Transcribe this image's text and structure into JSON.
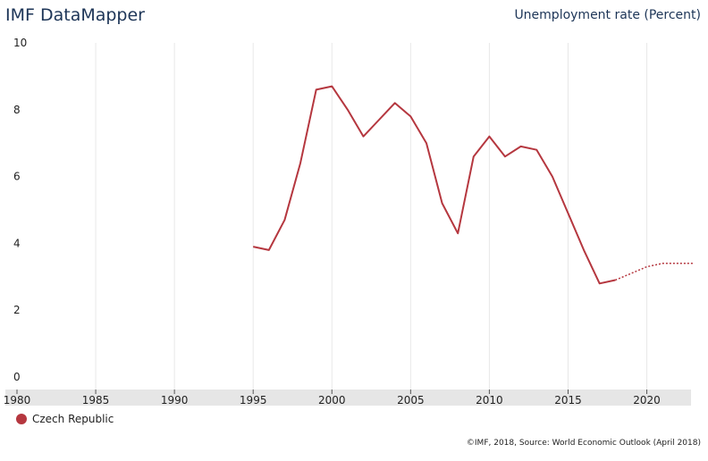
{
  "header": {
    "title": "IMF DataMapper",
    "metric": "Unemployment rate (Percent)"
  },
  "legend": {
    "label": "Czech Republic",
    "color": "#b5373f"
  },
  "source": "©IMF, 2018, Source: World Economic Outlook (April 2018)",
  "chart_data": {
    "type": "line",
    "title": "",
    "xlabel": "",
    "ylabel": "",
    "xlim": [
      1980,
      2024
    ],
    "ylim": [
      0,
      10
    ],
    "x_ticks": [
      "1980",
      "1985",
      "1990",
      "1995",
      "2000",
      "2005",
      "2010",
      "2015",
      "2020"
    ],
    "y_ticks": [
      "0",
      "2",
      "4",
      "6",
      "8",
      "10"
    ],
    "grid": "vertical",
    "legend_position": "bottom-left",
    "series": [
      {
        "name": "Czech Republic",
        "color": "#b5373f",
        "actual": {
          "x": [
            1995,
            1996,
            1997,
            1998,
            1999,
            2000,
            2001,
            2002,
            2003,
            2004,
            2005,
            2006,
            2007,
            2008,
            2009,
            2010,
            2011,
            2012,
            2013,
            2014,
            2015,
            2016,
            2017,
            2018
          ],
          "y": [
            3.9,
            3.8,
            4.7,
            6.4,
            8.6,
            8.7,
            8.0,
            7.2,
            7.7,
            8.2,
            7.8,
            7.0,
            5.2,
            4.3,
            6.6,
            7.2,
            6.6,
            6.9,
            6.8,
            6.0,
            4.9,
            3.8,
            2.8,
            2.9
          ]
        },
        "projection": {
          "x": [
            2018,
            2019,
            2020,
            2021,
            2022,
            2023
          ],
          "y": [
            2.9,
            3.1,
            3.3,
            3.4,
            3.4,
            3.4
          ]
        }
      }
    ]
  }
}
